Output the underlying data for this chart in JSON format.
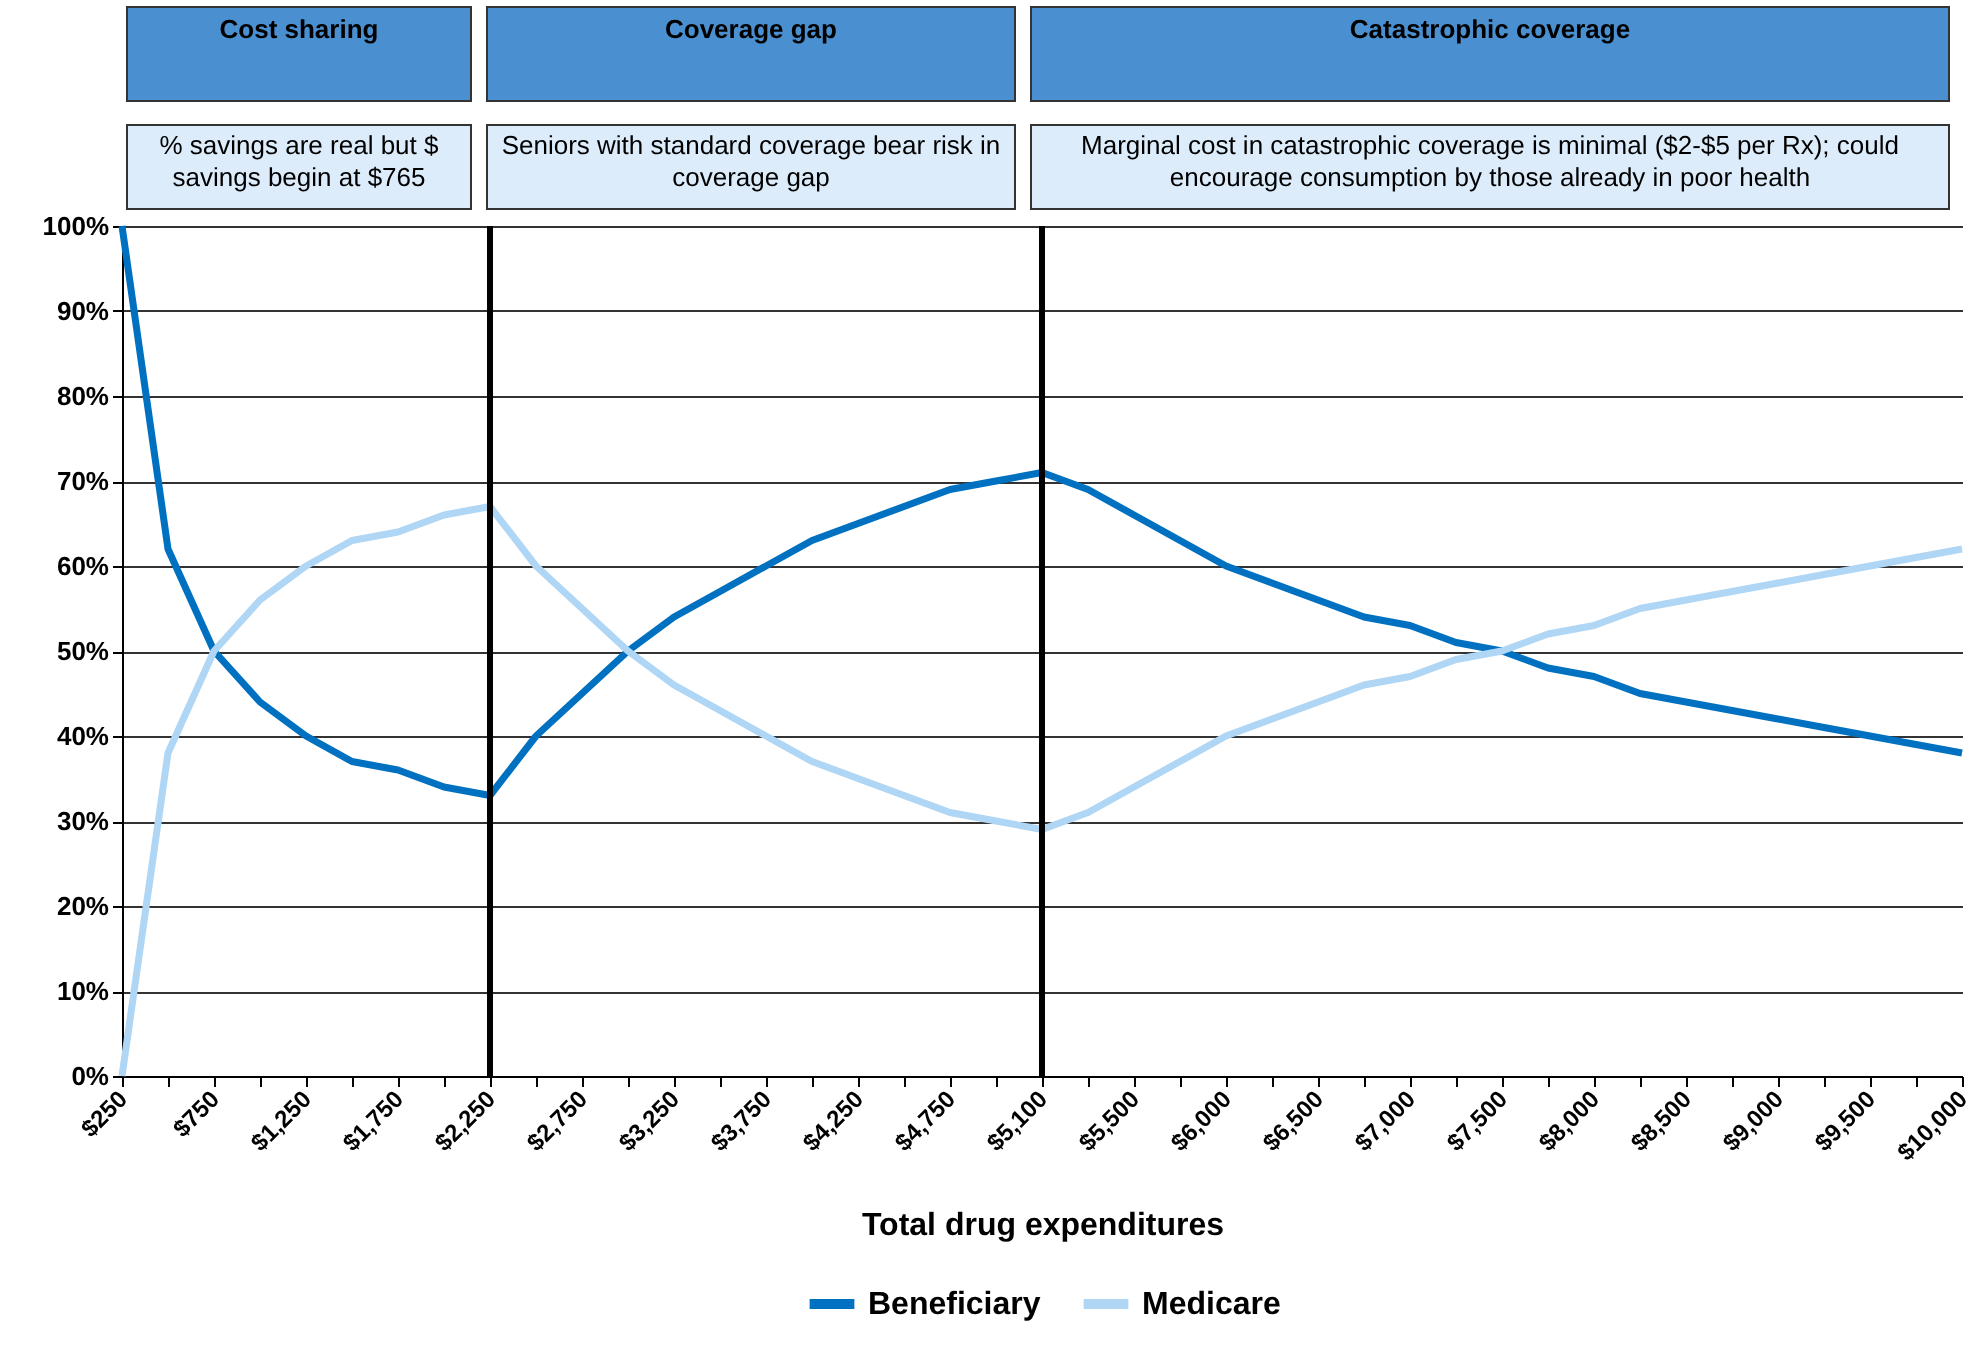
{
  "chart_data": {
    "type": "line",
    "xlabel": "Total drug expenditures",
    "categories": [
      "$250",
      null,
      "$750",
      null,
      "$1,250",
      null,
      "$1,750",
      null,
      "$2,250",
      null,
      "$2,750",
      null,
      "$3,250",
      null,
      "$3,750",
      null,
      "$4,250",
      null,
      "$4,750",
      null,
      "$5,100",
      null,
      "$5,500",
      null,
      "$6,000",
      null,
      "$6,500",
      null,
      "$7,000",
      null,
      "$7,500",
      null,
      "$8,000",
      null,
      "$8,500",
      null,
      "$9,000",
      null,
      "$9,500",
      null,
      "$10,000"
    ],
    "series": [
      {
        "name": "Beneficiary",
        "color": "#0070c0",
        "values": [
          100,
          62,
          50,
          44,
          40,
          37,
          36,
          34,
          33,
          40,
          45,
          50,
          54,
          57,
          60,
          63,
          65,
          67,
          69,
          70,
          71,
          69,
          66,
          63,
          60,
          58,
          56,
          54,
          53,
          51,
          50,
          48,
          47,
          45,
          44,
          43,
          42,
          41,
          40,
          39,
          38
        ]
      },
      {
        "name": "Medicare",
        "color": "#afd6f5",
        "values": [
          0,
          38,
          50,
          56,
          60,
          63,
          64,
          66,
          67,
          60,
          55,
          50,
          46,
          43,
          40,
          37,
          35,
          33,
          31,
          30,
          29,
          31,
          34,
          37,
          40,
          42,
          44,
          46,
          47,
          49,
          50,
          52,
          53,
          55,
          56,
          57,
          58,
          59,
          60,
          61,
          62
        ]
      }
    ],
    "ylim": [
      0,
      100
    ],
    "yticks": [
      {
        "value": 0,
        "label": "0%"
      },
      {
        "value": 10,
        "label": "10%"
      },
      {
        "value": 20,
        "label": "20%"
      },
      {
        "value": 30,
        "label": "30%"
      },
      {
        "value": 40,
        "label": "40%"
      },
      {
        "value": 50,
        "label": "50%"
      },
      {
        "value": 60,
        "label": "60%"
      },
      {
        "value": 70,
        "label": "70%"
      },
      {
        "value": 80,
        "label": "80%"
      },
      {
        "value": 90,
        "label": "90%"
      },
      {
        "value": 100,
        "label": "100%"
      }
    ],
    "grid": "y",
    "legend": "bottom",
    "marker": "none",
    "line_style": "solid",
    "ref_lines": [
      {
        "axis": "x",
        "value": "$2,250",
        "color": "#000000"
      },
      {
        "axis": "x",
        "value": "$5,100",
        "color": "#000000"
      }
    ],
    "annotations": [
      "Cost sharing",
      "Coverage gap",
      "Catastrophic coverage",
      "% savings are real but $ savings begin at $765",
      "Seniors with standard coverage bear risk in coverage gap",
      "Marginal cost in catastrophic coverage is minimal ($2-$5 per Rx); could encourage consumption by those already in poor health"
    ]
  }
}
